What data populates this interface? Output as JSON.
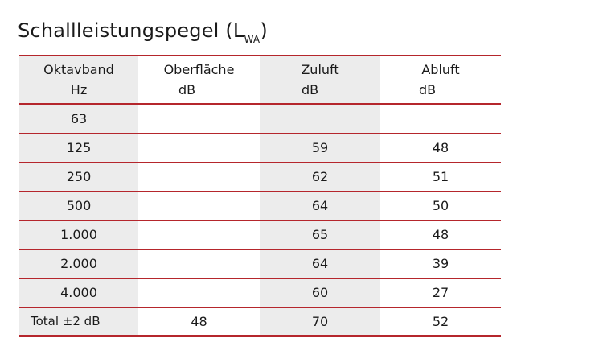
{
  "title": {
    "main": "Schallleistungspegel (L",
    "subscript": "WA",
    "close": ")"
  },
  "colors": {
    "rule": "#b5262c",
    "shade": "#ececec"
  },
  "table": {
    "headers": [
      {
        "line1": "Oktavband",
        "line2": "Hz"
      },
      {
        "line1": "Oberfläche",
        "line2": "dB"
      },
      {
        "line1": "Zuluft",
        "line2": "dB"
      },
      {
        "line1": "Abluft",
        "line2": "dB"
      }
    ],
    "rows": [
      {
        "band": "63",
        "oberflaeche": "",
        "zuluft": "",
        "abluft": ""
      },
      {
        "band": "125",
        "oberflaeche": "",
        "zuluft": "59",
        "abluft": "48"
      },
      {
        "band": "250",
        "oberflaeche": "",
        "zuluft": "62",
        "abluft": "51"
      },
      {
        "band": "500",
        "oberflaeche": "",
        "zuluft": "64",
        "abluft": "50"
      },
      {
        "band": "1.000",
        "oberflaeche": "",
        "zuluft": "65",
        "abluft": "48"
      },
      {
        "band": "2.000",
        "oberflaeche": "",
        "zuluft": "64",
        "abluft": "39"
      },
      {
        "band": "4.000",
        "oberflaeche": "",
        "zuluft": "60",
        "abluft": "27"
      }
    ],
    "total": {
      "band": "Total ±2 dB",
      "oberflaeche": "48",
      "zuluft": "70",
      "abluft": "52"
    }
  }
}
